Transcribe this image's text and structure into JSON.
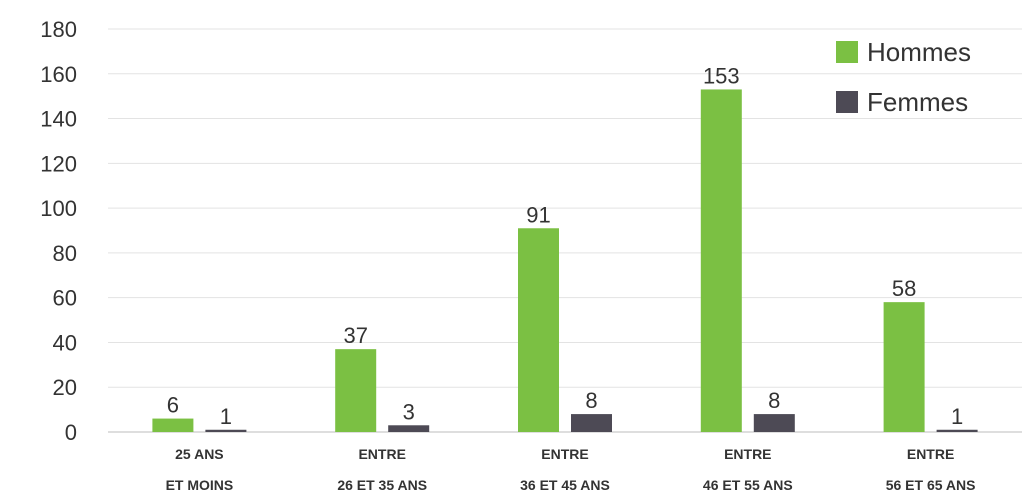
{
  "chart_data": {
    "type": "bar",
    "categories": [
      [
        "25 ANS",
        "ET MOINS"
      ],
      [
        "ENTRE",
        "26 ET 35 ANS"
      ],
      [
        "ENTRE",
        "36 ET 45 ANS"
      ],
      [
        "ENTRE",
        "46 ET 55 ANS"
      ],
      [
        "ENTRE",
        "56 ET 65 ANS"
      ]
    ],
    "series": [
      {
        "name": "Hommes",
        "color": "#7bc043",
        "values": [
          6,
          37,
          91,
          153,
          58
        ]
      },
      {
        "name": "Femmes",
        "color": "#4d4a55",
        "values": [
          1,
          3,
          8,
          8,
          1
        ]
      }
    ],
    "yticks": [
      0,
      20,
      40,
      60,
      80,
      100,
      120,
      140,
      160,
      180
    ],
    "ylim": [
      0,
      180
    ],
    "grid": true,
    "legend_position": "top-right",
    "data_labels": true
  }
}
